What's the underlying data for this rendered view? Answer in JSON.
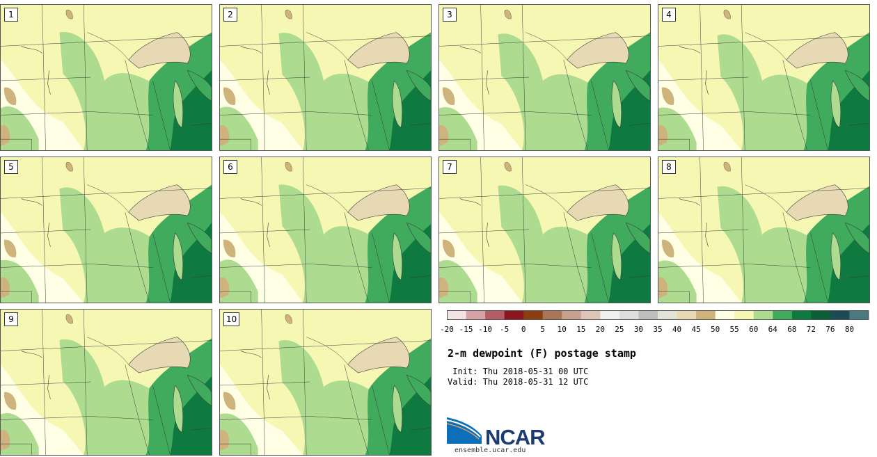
{
  "panels": [
    {
      "label": "1"
    },
    {
      "label": "2"
    },
    {
      "label": "3"
    },
    {
      "label": "4"
    },
    {
      "label": "5"
    },
    {
      "label": "6"
    },
    {
      "label": "7"
    },
    {
      "label": "8"
    },
    {
      "label": "9"
    },
    {
      "label": "10"
    }
  ],
  "colorbar": {
    "ticks": [
      "-20",
      "-15",
      "-10",
      "-5",
      "0",
      "5",
      "10",
      "15",
      "20",
      "25",
      "30",
      "35",
      "40",
      "45",
      "50",
      "55",
      "60",
      "64",
      "68",
      "72",
      "76",
      "80"
    ],
    "colors": [
      "#f2e4e4",
      "#d7a3a6",
      "#b35e64",
      "#8b1620",
      "#8b3e12",
      "#a9765a",
      "#c6a18e",
      "#dcc4b8",
      "#f0f0f0",
      "#dedede",
      "#bdbdbd",
      "#e2e2d6",
      "#e6d9b4",
      "#cfb37c",
      "#ffffe6",
      "#f7f7b4",
      "#addc90",
      "#41ab5d",
      "#0f7a3f",
      "#0b5e35",
      "#1c4b56",
      "#4b7b80"
    ]
  },
  "title": "2-m dewpoint (F) postage stamp",
  "init_line": " Init: Thu 2018-05-31 00 UTC",
  "valid_line": "Valid: Thu 2018-05-31 12 UTC",
  "logo": {
    "name": "NCAR",
    "url": "ensemble.ucar.edu"
  },
  "map_colors": {
    "base": "#f7f7b4",
    "pale": "#ffffe6",
    "light_green": "#addc90",
    "mid_green": "#41ab5d",
    "dark_green": "#0f7a3f",
    "tan": "#cfb37c",
    "lake_tan": "#e6d9b4",
    "border": "#3a3a3a"
  }
}
